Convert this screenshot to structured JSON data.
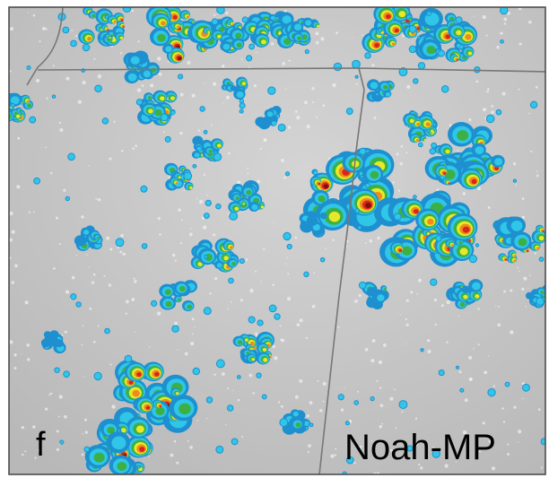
{
  "panel_label": "f",
  "model_name": "Noah-MP"
}
